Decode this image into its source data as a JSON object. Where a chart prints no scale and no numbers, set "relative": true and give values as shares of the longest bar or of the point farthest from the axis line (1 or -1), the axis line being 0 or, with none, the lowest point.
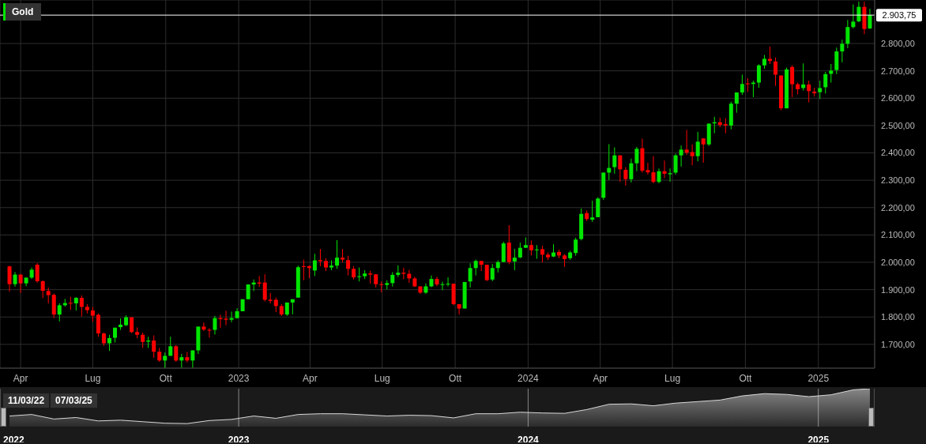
{
  "chart_data": [
    {
      "type": "candlestick",
      "x": [
        "2022-03-18",
        "2022-03-25",
        "2022-04-01",
        "2022-04-08",
        "2022-04-15",
        "2022-04-22",
        "2022-04-29",
        "2022-05-06",
        "2022-05-13",
        "2022-05-20",
        "2022-05-27",
        "2022-06-03",
        "2022-06-10",
        "2022-06-17",
        "2022-06-24",
        "2022-07-01",
        "2022-07-08",
        "2022-07-15",
        "2022-07-22",
        "2022-07-29",
        "2022-08-05",
        "2022-08-12",
        "2022-08-19",
        "2022-08-26",
        "2022-09-02",
        "2022-09-09",
        "2022-09-16",
        "2022-09-23",
        "2022-09-30",
        "2022-10-07",
        "2022-10-14",
        "2022-10-21",
        "2022-10-28",
        "2022-11-04",
        "2022-11-11",
        "2022-11-18",
        "2022-11-25",
        "2022-12-02",
        "2022-12-09",
        "2022-12-16",
        "2022-12-23",
        "2022-12-30",
        "2023-01-06",
        "2023-01-13",
        "2023-01-20",
        "2023-01-27",
        "2023-02-03",
        "2023-02-10",
        "2023-02-17",
        "2023-02-24",
        "2023-03-03",
        "2023-03-10",
        "2023-03-17",
        "2023-03-24",
        "2023-03-31",
        "2023-04-07",
        "2023-04-14",
        "2023-04-21",
        "2023-04-28",
        "2023-05-05",
        "2023-05-12",
        "2023-05-19",
        "2023-05-26",
        "2023-06-02",
        "2023-06-09",
        "2023-06-16",
        "2023-06-23",
        "2023-06-30",
        "2023-07-07",
        "2023-07-14",
        "2023-07-21",
        "2023-07-28",
        "2023-08-04",
        "2023-08-11",
        "2023-08-18",
        "2023-08-25",
        "2023-09-01",
        "2023-09-08",
        "2023-09-15",
        "2023-09-22",
        "2023-09-29",
        "2023-10-06",
        "2023-10-13",
        "2023-10-20",
        "2023-10-27",
        "2023-11-03",
        "2023-11-10",
        "2023-11-17",
        "2023-11-24",
        "2023-12-01",
        "2023-12-08",
        "2023-12-15",
        "2023-12-22",
        "2023-12-29",
        "2024-01-05",
        "2024-01-12",
        "2024-01-19",
        "2024-01-26",
        "2024-02-02",
        "2024-02-09",
        "2024-02-16",
        "2024-02-23",
        "2024-03-01",
        "2024-03-08",
        "2024-03-15",
        "2024-03-22",
        "2024-03-29",
        "2024-04-05",
        "2024-04-12",
        "2024-04-19",
        "2024-04-26",
        "2024-05-03",
        "2024-05-10",
        "2024-05-17",
        "2024-05-24",
        "2024-05-31",
        "2024-06-07",
        "2024-06-14",
        "2024-06-21",
        "2024-06-28",
        "2024-07-05",
        "2024-07-12",
        "2024-07-19",
        "2024-07-26",
        "2024-08-02",
        "2024-08-09",
        "2024-08-16",
        "2024-08-23",
        "2024-08-30",
        "2024-09-06",
        "2024-09-13",
        "2024-09-20",
        "2024-09-27",
        "2024-10-04",
        "2024-10-11",
        "2024-10-18",
        "2024-10-25",
        "2024-11-01",
        "2024-11-08",
        "2024-11-15",
        "2024-11-22",
        "2024-11-29",
        "2024-12-06",
        "2024-12-13",
        "2024-12-20",
        "2024-12-27",
        "2025-01-03",
        "2025-01-10",
        "2025-01-17",
        "2025-01-24",
        "2025-01-31",
        "2025-02-07",
        "2025-02-14",
        "2025-02-21",
        "2025-02-28",
        "2025-03-07"
      ],
      "series": [
        {
          "name": "Gold",
          "color": "#00e600",
          "colors": [
            "#ff0000",
            "#00e600",
            "#ff0000",
            "#00e600",
            "#00e600",
            "#ff0000",
            "#ff0000",
            "#ff0000",
            "#ff0000",
            "#00e600",
            "#00e600",
            "#ff0000",
            "#00e600",
            "#ff0000",
            "#ff0000",
            "#ff0000",
            "#ff0000",
            "#ff0000",
            "#00e600",
            "#00e600",
            "#00e600",
            "#00e600",
            "#ff0000",
            "#ff0000",
            "#ff0000",
            "#00e600",
            "#ff0000",
            "#ff0000",
            "#00e600",
            "#00e600",
            "#ff0000",
            "#00e600",
            "#ff0000",
            "#00e600",
            "#00e600",
            "#ff0000",
            "#ff0000",
            "#00e600",
            "#ff0000",
            "#ff0000",
            "#00e600",
            "#00e600",
            "#00e600",
            "#00e600",
            "#00e600",
            "#ff0000",
            "#ff0000",
            "#ff0000",
            "#ff0000",
            "#ff0000",
            "#00e600",
            "#00e600",
            "#00e600",
            "#ff0000",
            "#ff0000",
            "#00e600",
            "#ff0000",
            "#ff0000",
            "#00e600",
            "#00e600",
            "#ff0000",
            "#ff0000",
            "#ff0000",
            "#00e600",
            "#00e600",
            "#ff0000",
            "#ff0000",
            "#ff0000",
            "#00e600",
            "#00e600",
            "#00e600",
            "#ff0000",
            "#ff0000",
            "#ff0000",
            "#ff0000",
            "#00e600",
            "#00e600",
            "#ff0000",
            "#00e600",
            "#00e600",
            "#ff0000",
            "#ff0000",
            "#00e600",
            "#00e600",
            "#00e600",
            "#ff0000",
            "#ff0000",
            "#00e600",
            "#00e600",
            "#00e600",
            "#ff0000",
            "#00e600",
            "#00e600",
            "#00e600",
            "#ff0000",
            "#00e600",
            "#ff0000",
            "#ff0000",
            "#00e600",
            "#ff0000",
            "#ff0000",
            "#00e600",
            "#00e600",
            "#00e600",
            "#ff0000",
            "#00e600",
            "#00e600",
            "#00e600",
            "#00e600",
            "#00e600",
            "#ff0000",
            "#ff0000",
            "#00e600",
            "#00e600",
            "#ff0000",
            "#ff0000",
            "#ff0000",
            "#00e600",
            "#ff0000",
            "#00e600",
            "#00e600",
            "#00e600",
            "#ff0000",
            "#ff0000",
            "#00e600",
            "#ff0000",
            "#00e600",
            "#00e600",
            "#ff0000",
            "#ff0000",
            "#00e600",
            "#00e600",
            "#00e600",
            "#ff0000",
            "#00e600",
            "#00e600",
            "#00e600",
            "#ff0000",
            "#ff0000",
            "#ff0000",
            "#00e600",
            "#ff0000",
            "#ff0000",
            "#00e600",
            "#ff0000",
            "#ff0000",
            "#00e600",
            "#00e600",
            "#00e600",
            "#00e600",
            "#00e600",
            "#00e600",
            "#00e600",
            "#00e600",
            "#ff0000",
            "#00e600"
          ],
          "ohlc": [
            [
              1985,
              1988,
              1893,
              1920
            ],
            [
              1920,
              1964,
              1911,
              1955
            ],
            [
              1955,
              1957,
              1888,
              1923
            ],
            [
              1923,
              1944,
              1913,
              1944
            ],
            [
              1944,
              1981,
              1939,
              1973
            ],
            [
              1991,
              1997,
              1925,
              1931
            ],
            [
              1931,
              1934,
              1869,
              1896
            ],
            [
              1895,
              1908,
              1850,
              1880
            ],
            [
              1881,
              1886,
              1796,
              1809
            ],
            [
              1809,
              1850,
              1784,
              1843
            ],
            [
              1843,
              1866,
              1838,
              1851
            ],
            [
              1852,
              1874,
              1826,
              1850
            ],
            [
              1850,
              1873,
              1824,
              1870
            ],
            [
              1870,
              1879,
              1802,
              1837
            ],
            [
              1837,
              1847,
              1813,
              1825
            ],
            [
              1824,
              1837,
              1782,
              1805
            ],
            [
              1808,
              1813,
              1728,
              1740
            ],
            [
              1740,
              1743,
              1695,
              1704
            ],
            [
              1704,
              1735,
              1676,
              1723
            ],
            [
              1724,
              1761,
              1707,
              1761
            ],
            [
              1763,
              1795,
              1753,
              1772
            ],
            [
              1770,
              1806,
              1767,
              1799
            ],
            [
              1799,
              1799,
              1741,
              1745
            ],
            [
              1745,
              1762,
              1722,
              1735
            ],
            [
              1735,
              1743,
              1687,
              1709
            ],
            [
              1710,
              1728,
              1687,
              1714
            ],
            [
              1714,
              1733,
              1651,
              1673
            ],
            [
              1673,
              1687,
              1636,
              1641
            ],
            [
              1641,
              1670,
              1610,
              1658
            ],
            [
              1658,
              1728,
              1658,
              1693
            ],
            [
              1693,
              1697,
              1636,
              1641
            ],
            [
              1641,
              1665,
              1614,
              1653
            ],
            [
              1653,
              1672,
              1634,
              1641
            ],
            [
              1641,
              1678,
              1614,
              1678
            ],
            [
              1678,
              1765,
              1665,
              1765
            ],
            [
              1765,
              1780,
              1749,
              1754
            ],
            [
              1753,
              1759,
              1725,
              1750
            ],
            [
              1753,
              1804,
              1736,
              1796
            ],
            [
              1796,
              1809,
              1761,
              1792
            ],
            [
              1794,
              1823,
              1770,
              1790
            ],
            [
              1790,
              1820,
              1781,
              1796
            ],
            [
              1796,
              1832,
              1794,
              1821
            ],
            [
              1821,
              1865,
              1821,
              1865
            ],
            [
              1865,
              1919,
              1865,
              1919
            ],
            [
              1919,
              1937,
              1895,
              1926
            ],
            [
              1926,
              1950,
              1910,
              1922
            ],
            [
              1926,
              1956,
              1857,
              1863
            ],
            [
              1863,
              1888,
              1850,
              1859
            ],
            [
              1863,
              1871,
              1818,
              1840
            ],
            [
              1840,
              1847,
              1804,
              1809
            ],
            [
              1809,
              1853,
              1804,
              1853
            ],
            [
              1853,
              1865,
              1810,
              1865
            ],
            [
              1871,
              1988,
              1871,
              1982
            ],
            [
              1986,
              2010,
              1934,
              1983
            ],
            [
              1986,
              1988,
              1942,
              1979
            ],
            [
              1970,
              2031,
              1950,
              2007
            ],
            [
              2008,
              2049,
              1986,
              2004
            ],
            [
              2005,
              2015,
              1968,
              1981
            ],
            [
              1981,
              2007,
              1971,
              1988
            ],
            [
              1988,
              2081,
              1976,
              2017
            ],
            [
              2017,
              2049,
              2000,
              2010
            ],
            [
              2008,
              2024,
              1952,
              1976
            ],
            [
              1976,
              1986,
              1937,
              1945
            ],
            [
              1946,
              1981,
              1930,
              1949
            ],
            [
              1949,
              1971,
              1939,
              1959
            ],
            [
              1959,
              1969,
              1922,
              1955
            ],
            [
              1956,
              1956,
              1908,
              1920
            ],
            [
              1920,
              1930,
              1890,
              1917
            ],
            [
              1917,
              1934,
              1901,
              1924
            ],
            [
              1924,
              1964,
              1911,
              1954
            ],
            [
              1954,
              1989,
              1946,
              1962
            ],
            [
              1962,
              1980,
              1938,
              1958
            ],
            [
              1958,
              1972,
              1925,
              1941
            ],
            [
              1941,
              1947,
              1910,
              1912
            ],
            [
              1912,
              1912,
              1885,
              1889
            ],
            [
              1889,
              1923,
              1885,
              1912
            ],
            [
              1912,
              1952,
              1909,
              1939
            ],
            [
              1939,
              1947,
              1913,
              1919
            ],
            [
              1917,
              1929,
              1898,
              1920
            ],
            [
              1919,
              1945,
              1912,
              1922
            ],
            [
              1922,
              1922,
              1843,
              1847
            ],
            [
              1847,
              1847,
              1809,
              1831
            ],
            [
              1831,
              1928,
              1831,
              1928
            ],
            [
              1930,
              1996,
              1908,
              1979
            ],
            [
              1979,
              2010,
              1952,
              2005
            ],
            [
              2005,
              2005,
              1968,
              1991
            ],
            [
              1991,
              1991,
              1931,
              1935
            ],
            [
              1937,
              1994,
              1931,
              1979
            ],
            [
              1979,
              2007,
              1963,
              2001
            ],
            [
              2001,
              2075,
              2001,
              2069
            ],
            [
              2072,
              2136,
              1993,
              2001
            ],
            [
              2003,
              2049,
              1971,
              2017
            ],
            [
              2018,
              2072,
              2015,
              2053
            ],
            [
              2053,
              2091,
              2053,
              2063
            ],
            [
              2063,
              2080,
              2025,
              2044
            ],
            [
              2044,
              2063,
              2013,
              2047
            ],
            [
              2048,
              2060,
              2000,
              2028
            ],
            [
              2028,
              2036,
              2008,
              2018
            ],
            [
              2021,
              2066,
              2019,
              2036
            ],
            [
              2038,
              2046,
              2015,
              2025
            ],
            [
              2025,
              2030,
              1983,
              2012
            ],
            [
              2015,
              2042,
              2009,
              2036
            ],
            [
              2034,
              2090,
              2024,
              2083
            ],
            [
              2085,
              2197,
              2080,
              2177
            ],
            [
              2180,
              2190,
              2151,
              2158
            ],
            [
              2156,
              2225,
              2148,
              2164
            ],
            [
              2165,
              2238,
              2165,
              2233
            ],
            [
              2236,
              2328,
              2228,
              2328
            ],
            [
              2328,
              2432,
              2301,
              2345
            ],
            [
              2348,
              2420,
              2324,
              2391
            ],
            [
              2391,
              2391,
              2294,
              2340
            ],
            [
              2338,
              2348,
              2280,
              2304
            ],
            [
              2304,
              2379,
              2292,
              2362
            ],
            [
              2362,
              2422,
              2333,
              2415
            ],
            [
              2417,
              2452,
              2328,
              2335
            ],
            [
              2337,
              2364,
              2321,
              2329
            ],
            [
              2329,
              2388,
              2289,
              2294
            ],
            [
              2294,
              2343,
              2289,
              2333
            ],
            [
              2333,
              2372,
              2308,
              2324
            ],
            [
              2322,
              2343,
              2295,
              2326
            ],
            [
              2328,
              2397,
              2321,
              2391
            ],
            [
              2391,
              2427,
              2350,
              2412
            ],
            [
              2412,
              2484,
              2393,
              2401
            ],
            [
              2403,
              2431,
              2355,
              2388
            ],
            [
              2388,
              2477,
              2369,
              2441
            ],
            [
              2453,
              2453,
              2364,
              2431
            ],
            [
              2431,
              2507,
              2425,
              2507
            ],
            [
              2508,
              2532,
              2472,
              2512
            ],
            [
              2512,
              2529,
              2494,
              2502
            ],
            [
              2505,
              2527,
              2472,
              2500
            ],
            [
              2500,
              2587,
              2486,
              2580
            ],
            [
              2580,
              2621,
              2547,
              2621
            ],
            [
              2621,
              2686,
              2612,
              2652
            ],
            [
              2654,
              2673,
              2623,
              2651
            ],
            [
              2652,
              2664,
              2604,
              2657
            ],
            [
              2657,
              2724,
              2638,
              2720
            ],
            [
              2720,
              2758,
              2708,
              2744
            ],
            [
              2744,
              2789,
              2725,
              2736
            ],
            [
              2734,
              2749,
              2645,
              2686
            ],
            [
              2683,
              2683,
              2556,
              2563
            ],
            [
              2563,
              2712,
              2563,
              2705
            ],
            [
              2714,
              2720,
              2604,
              2651
            ],
            [
              2651,
              2657,
              2614,
              2633
            ],
            [
              2637,
              2727,
              2628,
              2650
            ],
            [
              2650,
              2664,
              2585,
              2626
            ],
            [
              2624,
              2638,
              2606,
              2618
            ],
            [
              2622,
              2664,
              2597,
              2637
            ],
            [
              2640,
              2696,
              2617,
              2688
            ],
            [
              2689,
              2725,
              2657,
              2701
            ],
            [
              2703,
              2785,
              2688,
              2771
            ],
            [
              2771,
              2814,
              2731,
              2799
            ],
            [
              2799,
              2886,
              2783,
              2860
            ],
            [
              2860,
              2943,
              2855,
              2880
            ],
            [
              2881,
              2953,
              2878,
              2934
            ],
            [
              2934,
              2953,
              2834,
              2853
            ],
            [
              2855,
              2927,
              2853,
              2903.75
            ]
          ]
        }
      ],
      "xlim": [
        "2022-03-06",
        "2025-03-13"
      ],
      "xticks": [
        {
          "value": "2022-04-01",
          "label": "Apr"
        },
        {
          "value": "2022-07-01",
          "label": "Lug"
        },
        {
          "value": "2022-10-01",
          "label": "Ott"
        },
        {
          "value": "2023-01-01",
          "label": "2023"
        },
        {
          "value": "2023-04-01",
          "label": "Apr"
        },
        {
          "value": "2023-07-01",
          "label": "Lug"
        },
        {
          "value": "2023-10-01",
          "label": "Ott"
        },
        {
          "value": "2024-01-01",
          "label": "2024"
        },
        {
          "value": "2024-04-01",
          "label": "Apr"
        },
        {
          "value": "2024-07-01",
          "label": "Lug"
        },
        {
          "value": "2024-10-01",
          "label": "Ott"
        },
        {
          "value": "2025-01-01",
          "label": "2025"
        }
      ],
      "ylim": [
        1613,
        2959
      ],
      "yticks": [
        {
          "value": 1700,
          "label": "1.700,00"
        },
        {
          "value": 1800,
          "label": "1.800,00"
        },
        {
          "value": 1900,
          "label": "1.900,00"
        },
        {
          "value": 2000,
          "label": "2.000,00"
        },
        {
          "value": 2100,
          "label": "2.100,00"
        },
        {
          "value": 2200,
          "label": "2.200,00"
        },
        {
          "value": 2300,
          "label": "2.300,00"
        },
        {
          "value": 2400,
          "label": "2.400,00"
        },
        {
          "value": 2500,
          "label": "2.500,00"
        },
        {
          "value": 2600,
          "label": "2.600,00"
        },
        {
          "value": 2700,
          "label": "2.700,00"
        },
        {
          "value": 2800,
          "label": "2.800,00"
        }
      ],
      "ref_lines": [
        {
          "axis": "y",
          "value": 2903.75,
          "label": "2.903,75",
          "color": "#ffffff"
        }
      ],
      "grid": true,
      "legend": "top left"
    },
    {
      "type": "area",
      "relative": true,
      "series": [
        {
          "color": "#d8d8d8",
          "x": [
            "2022-03-18",
            "2022-04-15",
            "2022-05-13",
            "2022-06-10",
            "2022-07-08",
            "2022-08-05",
            "2022-09-02",
            "2022-09-30",
            "2022-10-28",
            "2022-11-25",
            "2022-12-23",
            "2023-01-20",
            "2023-02-17",
            "2023-03-17",
            "2023-04-14",
            "2023-05-12",
            "2023-06-09",
            "2023-07-07",
            "2023-08-04",
            "2023-09-01",
            "2023-09-29",
            "2023-10-27",
            "2023-11-24",
            "2023-12-22",
            "2024-01-19",
            "2024-02-16",
            "2024-03-15",
            "2024-04-12",
            "2024-05-10",
            "2024-06-07",
            "2024-07-05",
            "2024-08-02",
            "2024-08-30",
            "2024-09-27",
            "2024-10-25",
            "2024-11-22",
            "2024-12-20",
            "2025-01-17",
            "2025-02-14",
            "2025-03-07"
          ],
          "values": [
            0.28,
            0.32,
            0.2,
            0.24,
            0.15,
            0.17,
            0.13,
            0.09,
            0.08,
            0.16,
            0.19,
            0.28,
            0.22,
            0.32,
            0.34,
            0.34,
            0.31,
            0.28,
            0.3,
            0.29,
            0.23,
            0.34,
            0.34,
            0.38,
            0.36,
            0.35,
            0.45,
            0.59,
            0.6,
            0.55,
            0.62,
            0.66,
            0.7,
            0.81,
            0.87,
            0.85,
            0.79,
            0.84,
            0.97,
            1
          ]
        }
      ],
      "xlim": [
        "2022-03-06",
        "2025-03-13"
      ],
      "xticks": [
        {
          "value": "2022-03-06",
          "label": "2022"
        },
        {
          "value": "2023-01-01",
          "label": "2023"
        },
        {
          "value": "2024-01-01",
          "label": "2024"
        },
        {
          "value": "2025-01-01",
          "label": "2025"
        }
      ],
      "grid": "x",
      "annotations": [
        "11/03/22",
        "07/03/25"
      ]
    }
  ]
}
